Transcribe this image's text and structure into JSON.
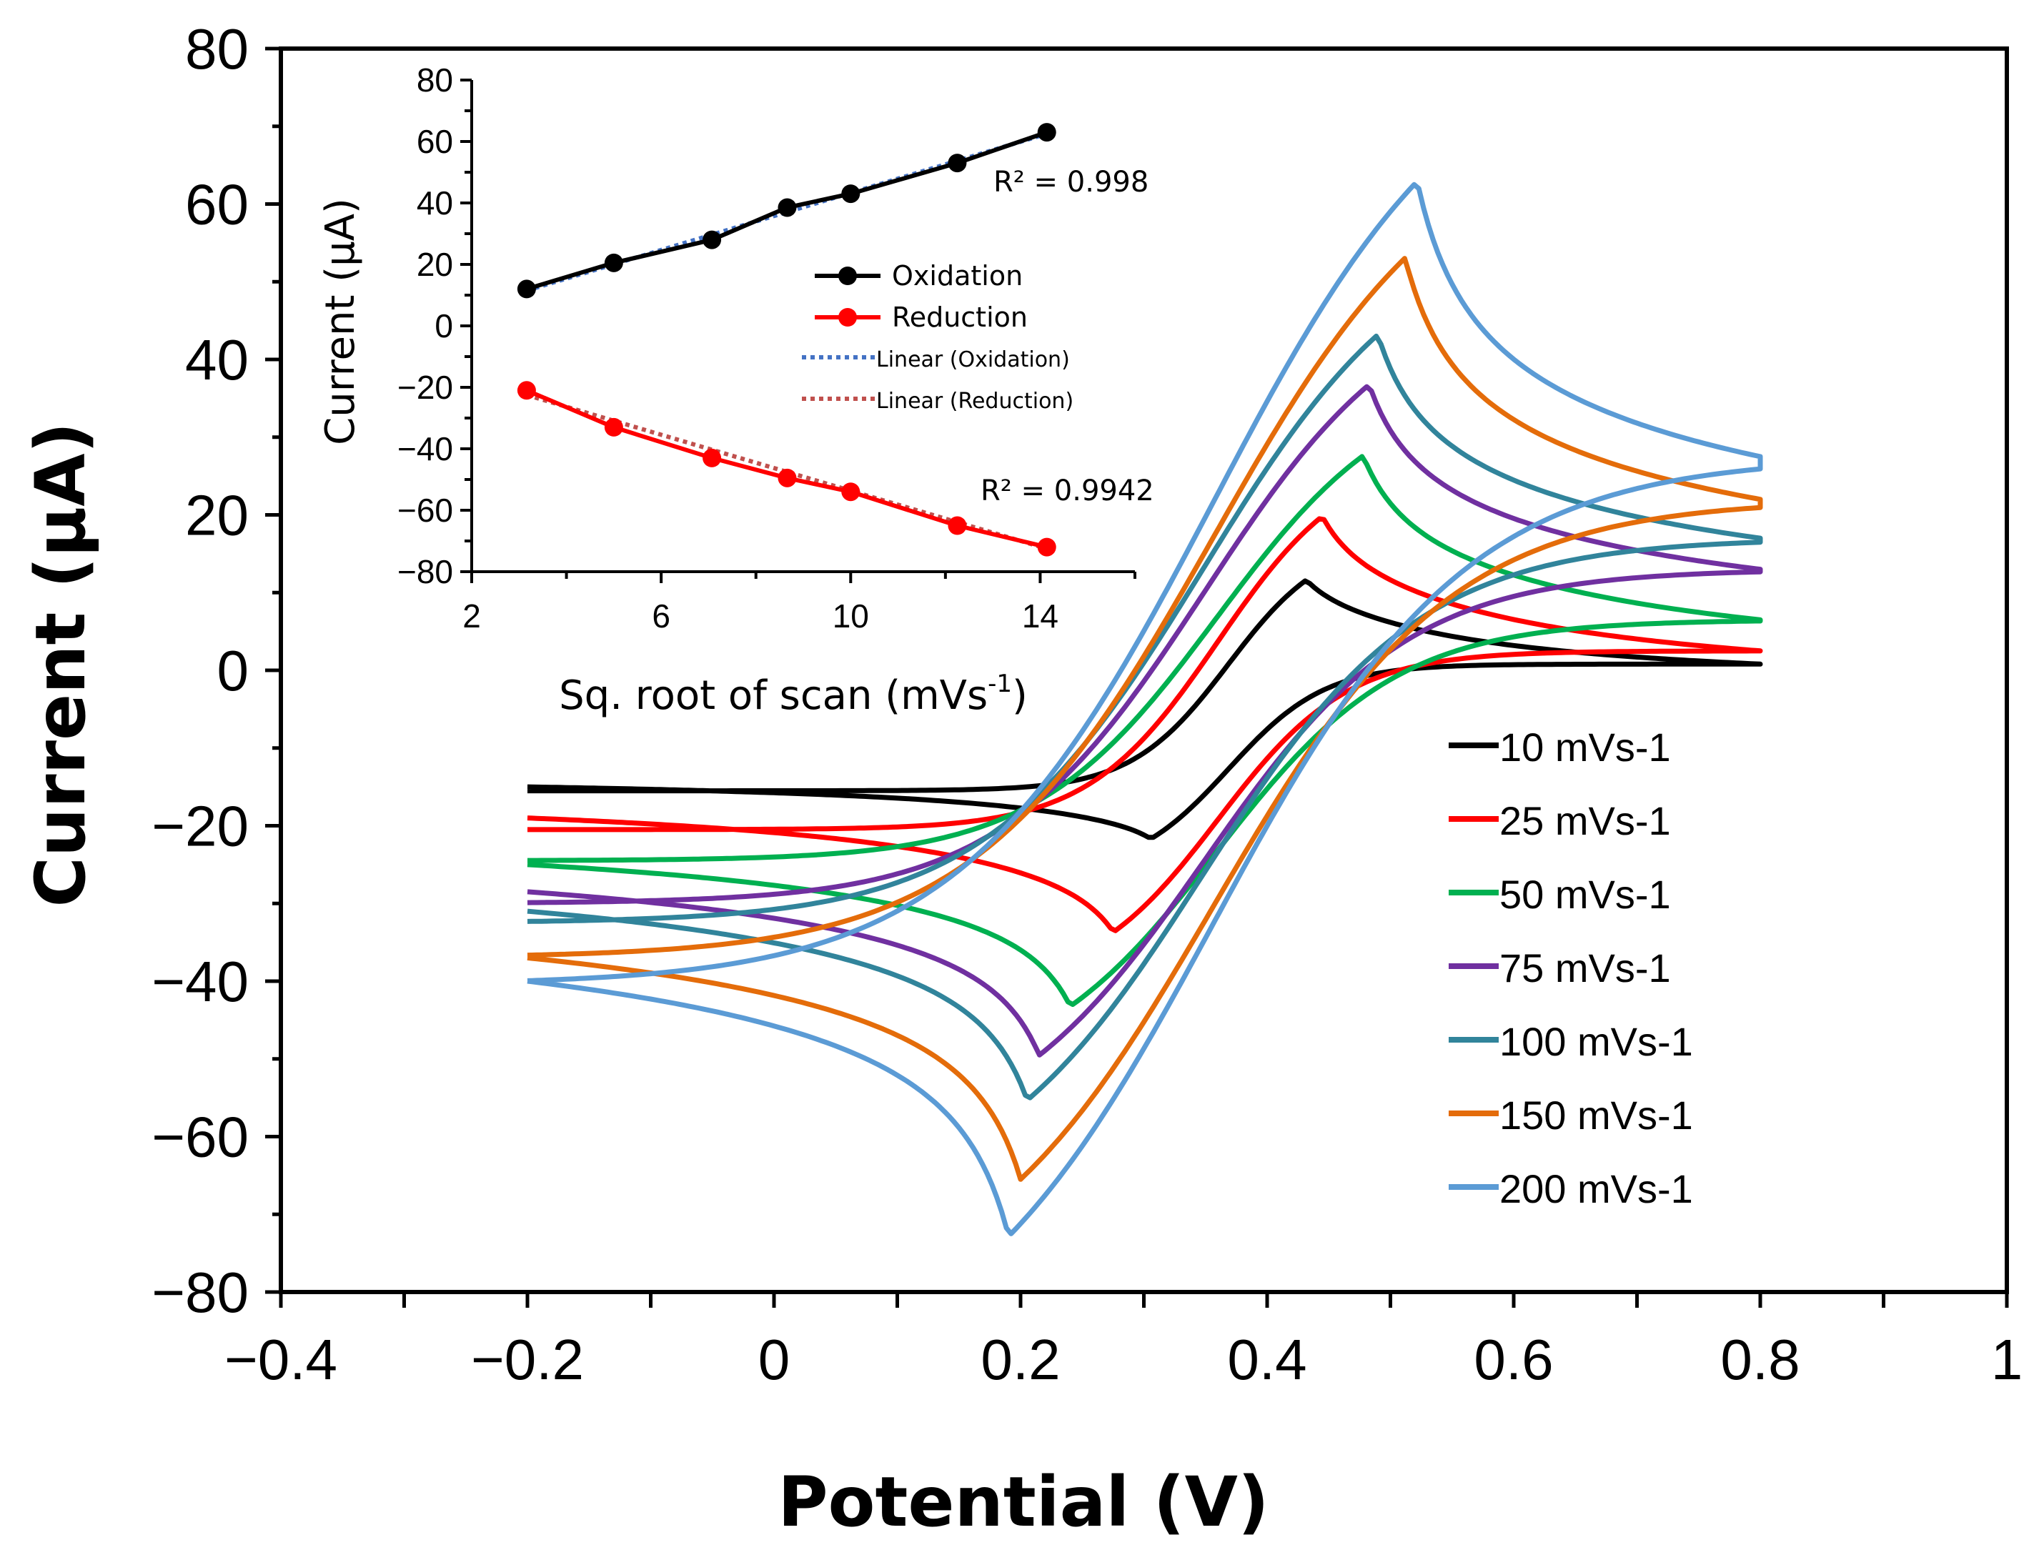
{
  "chart_data": [
    {
      "type": "line",
      "title": "",
      "xlabel": "Potential (V)",
      "ylabel": "Current (μA)",
      "xlim": [
        -0.4,
        1.0
      ],
      "ylim": [
        -80,
        80
      ],
      "xticks": [
        -0.4,
        -0.2,
        0,
        0.2,
        0.4,
        0.6,
        0.8,
        1
      ],
      "xtick_labels": [
        "−0.4",
        "−0.2",
        "0",
        "0.2",
        "0.4",
        "0.6",
        "0.8",
        "1"
      ],
      "yticks": [
        -80,
        -60,
        -40,
        -20,
        0,
        20,
        40,
        60,
        80
      ],
      "ytick_labels": [
        "−80",
        "−60",
        "−40",
        "−20",
        "0",
        "20",
        "40",
        "60",
        "80"
      ],
      "grid": false,
      "legend_position": "bottom-right",
      "series": [
        {
          "name": "10 mVs-1",
          "color": "#000000",
          "Epa": 0.432,
          "Ipa": 11.5,
          "Epc": 0.305,
          "Ipc": -21.5,
          "I_start": -15.5,
          "I_end": 0.8,
          "I_bwd_end": -15.0
        },
        {
          "name": "25 mVs-1",
          "color": "#ff0000",
          "Epa": 0.445,
          "Ipa": 19.5,
          "Epc": 0.275,
          "Ipc": -33.5,
          "I_start": -20.5,
          "I_end": 2.5,
          "I_bwd_end": -19.0
        },
        {
          "name": "50 mVs-1",
          "color": "#00b050",
          "Epa": 0.478,
          "Ipa": 27.5,
          "Epc": 0.24,
          "Ipc": -43.0,
          "I_start": -24.5,
          "I_end": 6.5,
          "I_bwd_end": -25.0
        },
        {
          "name": "75 mVs-1",
          "color": "#7030a0",
          "Epa": 0.483,
          "Ipa": 36.5,
          "Epc": 0.215,
          "Ipc": -49.5,
          "I_start": -30.0,
          "I_end": 13.0,
          "I_bwd_end": -28.5
        },
        {
          "name": "100 mVs-1",
          "color": "#31849b",
          "Epa": 0.49,
          "Ipa": 43.0,
          "Epc": 0.205,
          "Ipc": -55.0,
          "I_start": -32.5,
          "I_end": 17.0,
          "I_bwd_end": -31.0
        },
        {
          "name": "150 mVs-1",
          "color": "#e46c0a",
          "Epa": 0.512,
          "Ipa": 53.0,
          "Epc": 0.2,
          "Ipc": -65.5,
          "I_start": -37.0,
          "I_end": 22.0,
          "I_bwd_end": -37.0
        },
        {
          "name": "200 mVs-1",
          "color": "#5b9bd5",
          "Epa": 0.522,
          "Ipa": 62.5,
          "Epc": 0.19,
          "Ipc": -72.5,
          "I_start": -40.5,
          "I_end": 27.5,
          "I_bwd_end": -40.0
        }
      ]
    },
    {
      "type": "scatter",
      "title": "",
      "xlabel": "Sq. root of scan (mVs",
      "xlabel_sup": "-1",
      "xlabel_end": ")",
      "ylabel": "Current (μA)",
      "xlim": [
        2,
        16
      ],
      "ylim": [
        -80,
        80
      ],
      "xticks": [
        2,
        6,
        10,
        14
      ],
      "xtick_labels": [
        "2",
        "6",
        "10",
        "14"
      ],
      "yticks": [
        -80,
        -60,
        -40,
        -20,
        0,
        20,
        40,
        60,
        80
      ],
      "ytick_labels": [
        "−80",
        "−60",
        "−40",
        "−20",
        "0",
        "20",
        "40",
        "60",
        "80"
      ],
      "legend_position": "center",
      "series": [
        {
          "name": "Oxidation",
          "color": "#000000",
          "x": [
            3.16,
            5.0,
            7.07,
            8.66,
            10.0,
            12.25,
            14.14
          ],
          "y": [
            12,
            20.5,
            28,
            38.5,
            43,
            53,
            63
          ]
        },
        {
          "name": "Reduction",
          "color": "#ff0000",
          "x": [
            3.16,
            5.0,
            7.07,
            8.66,
            10.0,
            12.25,
            14.14
          ],
          "y": [
            -21,
            -33,
            -43,
            -49.5,
            -54,
            -65,
            -72
          ]
        }
      ],
      "trendlines": [
        {
          "name": "Linear (Oxidation)",
          "color": "#4472c4",
          "x": [
            3.16,
            14.14
          ],
          "y": [
            11.5,
            62.5
          ]
        },
        {
          "name": "Linear (Reduction)",
          "color": "#c0504d",
          "x": [
            3.16,
            14.14
          ],
          "y": [
            -22.5,
            -72.5
          ]
        }
      ],
      "annotations": {
        "r2_oxidation": "R² = 0.998",
        "r2_reduction": "R² = 0.9942"
      }
    }
  ]
}
